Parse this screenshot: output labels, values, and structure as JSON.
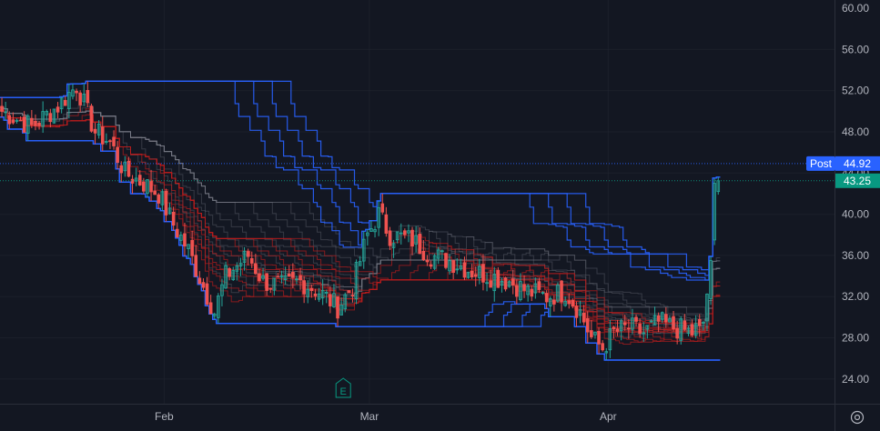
{
  "chart_data": {
    "type": "candlestick",
    "price_axis": {
      "ticks": [
        "56.00",
        "52.00",
        "48.00",
        "44.00",
        "40.00",
        "36.00",
        "32.00",
        "28.00",
        "24.00"
      ],
      "top_partial": "60.00",
      "ylim": [
        21.6,
        60.8
      ]
    },
    "time_axis": {
      "ticks": [
        {
          "label": "Feb",
          "index": 44
        },
        {
          "label": "Mar",
          "index": 99
        },
        {
          "label": "Apr",
          "index": 163
        }
      ]
    },
    "price_tags": [
      {
        "label": "Post",
        "value": "44.92",
        "price": 44.92,
        "color": "#2962ff"
      },
      {
        "value": "43.25",
        "price": 43.25,
        "color": "#089981"
      }
    ],
    "event_marker": {
      "label": "E",
      "index": 92
    },
    "colors": {
      "background": "#131722",
      "up": "#26a69a",
      "down": "#ef5350",
      "donchian_blue": "#2962ff",
      "ribbon_red": "#b71c1c",
      "ribbon_gray": "#787b86",
      "grid": "#2a2e39",
      "text": "#b2b5be"
    },
    "anchors": [
      [
        0,
        50.0
      ],
      [
        8,
        48.5
      ],
      [
        15,
        50.5
      ],
      [
        20,
        52.5
      ],
      [
        25,
        48.0
      ],
      [
        29,
        47.0
      ],
      [
        33,
        44.0
      ],
      [
        38,
        43.0
      ],
      [
        42,
        42.0
      ],
      [
        46,
        39.0
      ],
      [
        50,
        36.5
      ],
      [
        54,
        33.0
      ],
      [
        57,
        30.5
      ],
      [
        60,
        34.0
      ],
      [
        66,
        36.0
      ],
      [
        70,
        33.5
      ],
      [
        75,
        33.0
      ],
      [
        80,
        33.5
      ],
      [
        85,
        32.5
      ],
      [
        90,
        31.0
      ],
      [
        94,
        33.0
      ],
      [
        98,
        38.0
      ],
      [
        101,
        40.0
      ],
      [
        104,
        38.0
      ],
      [
        110,
        37.5
      ],
      [
        115,
        36.0
      ],
      [
        120,
        35.5
      ],
      [
        126,
        34.5
      ],
      [
        131,
        34.0
      ],
      [
        136,
        33.5
      ],
      [
        141,
        32.5
      ],
      [
        146,
        32.0
      ],
      [
        151,
        32.5
      ],
      [
        155,
        30.5
      ],
      [
        158,
        28.0
      ],
      [
        161,
        27.0
      ],
      [
        164,
        28.5
      ],
      [
        168,
        29.0
      ],
      [
        172,
        28.5
      ],
      [
        176,
        29.5
      ],
      [
        180,
        29.0
      ],
      [
        185,
        28.5
      ],
      [
        188,
        29.5
      ],
      [
        190,
        35.0
      ],
      [
        192,
        43.25
      ]
    ],
    "candle_count": 193
  }
}
